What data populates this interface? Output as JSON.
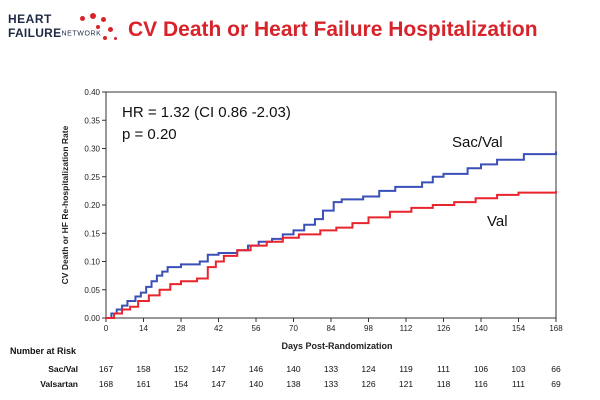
{
  "logo": {
    "line1": "HEART",
    "line2": "FAILURE",
    "network": "NETWORK"
  },
  "slide_title": "CV Death or Heart Failure Hospitalization",
  "colors": {
    "title": "#d8232a",
    "sac_val": "#3a4fb8",
    "val": "#e8242c"
  },
  "chart_data": {
    "type": "line",
    "title": "",
    "xlabel": "Days Post-Randomization",
    "ylabel": "CV Death or HF Re-hospitalization Rate",
    "x_ticks": [
      0,
      14,
      28,
      42,
      56,
      70,
      84,
      98,
      112,
      126,
      140,
      154,
      168
    ],
    "y_ticks": [
      "0.00",
      "0.05",
      "0.10",
      "0.15",
      "0.20",
      "0.25",
      "0.30",
      "0.35",
      "0.40"
    ],
    "xlim": [
      0,
      168
    ],
    "ylim": [
      0,
      0.4
    ],
    "step": true,
    "series": [
      {
        "name": "Sac/Val",
        "color": "#3a4fb8",
        "points": [
          [
            0,
            0
          ],
          [
            2,
            0.008
          ],
          [
            4,
            0.015
          ],
          [
            6,
            0.022
          ],
          [
            8,
            0.03
          ],
          [
            11,
            0.038
          ],
          [
            13,
            0.045
          ],
          [
            15,
            0.055
          ],
          [
            17,
            0.065
          ],
          [
            19,
            0.075
          ],
          [
            21,
            0.082
          ],
          [
            23,
            0.09
          ],
          [
            28,
            0.095
          ],
          [
            35,
            0.1
          ],
          [
            38,
            0.112
          ],
          [
            42,
            0.115
          ],
          [
            49,
            0.12
          ],
          [
            53,
            0.128
          ],
          [
            57,
            0.135
          ],
          [
            62,
            0.14
          ],
          [
            66,
            0.148
          ],
          [
            70,
            0.155
          ],
          [
            74,
            0.165
          ],
          [
            78,
            0.175
          ],
          [
            81,
            0.19
          ],
          [
            85,
            0.205
          ],
          [
            88,
            0.21
          ],
          [
            96,
            0.215
          ],
          [
            102,
            0.225
          ],
          [
            108,
            0.232
          ],
          [
            118,
            0.24
          ],
          [
            122,
            0.25
          ],
          [
            126,
            0.255
          ],
          [
            135,
            0.265
          ],
          [
            140,
            0.272
          ],
          [
            146,
            0.28
          ],
          [
            156,
            0.29
          ],
          [
            168,
            0.295
          ]
        ]
      },
      {
        "name": "Val",
        "color": "#e8242c",
        "points": [
          [
            0,
            0
          ],
          [
            3,
            0.008
          ],
          [
            6,
            0.015
          ],
          [
            9,
            0.02
          ],
          [
            12,
            0.03
          ],
          [
            16,
            0.04
          ],
          [
            20,
            0.05
          ],
          [
            24,
            0.06
          ],
          [
            28,
            0.065
          ],
          [
            34,
            0.07
          ],
          [
            38,
            0.09
          ],
          [
            41,
            0.1
          ],
          [
            44,
            0.11
          ],
          [
            49,
            0.12
          ],
          [
            54,
            0.128
          ],
          [
            60,
            0.135
          ],
          [
            66,
            0.142
          ],
          [
            72,
            0.148
          ],
          [
            80,
            0.155
          ],
          [
            86,
            0.16
          ],
          [
            92,
            0.168
          ],
          [
            98,
            0.178
          ],
          [
            106,
            0.188
          ],
          [
            114,
            0.195
          ],
          [
            122,
            0.2
          ],
          [
            130,
            0.205
          ],
          [
            138,
            0.212
          ],
          [
            146,
            0.218
          ],
          [
            154,
            0.222
          ],
          [
            168,
            0.225
          ]
        ]
      }
    ],
    "annotations": {
      "hr": "HR = 1.32 (CI 0.86 -2.03)",
      "p": "p = 0.20",
      "label_sac_val": "Sac/Val",
      "label_val": "Val"
    }
  },
  "risk_table": {
    "title": "Number at Risk",
    "rows": [
      {
        "label": "Sac/Val",
        "values": [
          "167",
          "158",
          "152",
          "147",
          "146",
          "140",
          "133",
          "124",
          "119",
          "111",
          "106",
          "103",
          "66"
        ]
      },
      {
        "label": "Valsartan",
        "values": [
          "168",
          "161",
          "154",
          "147",
          "140",
          "138",
          "133",
          "126",
          "121",
          "118",
          "116",
          "111",
          "69"
        ]
      }
    ]
  }
}
